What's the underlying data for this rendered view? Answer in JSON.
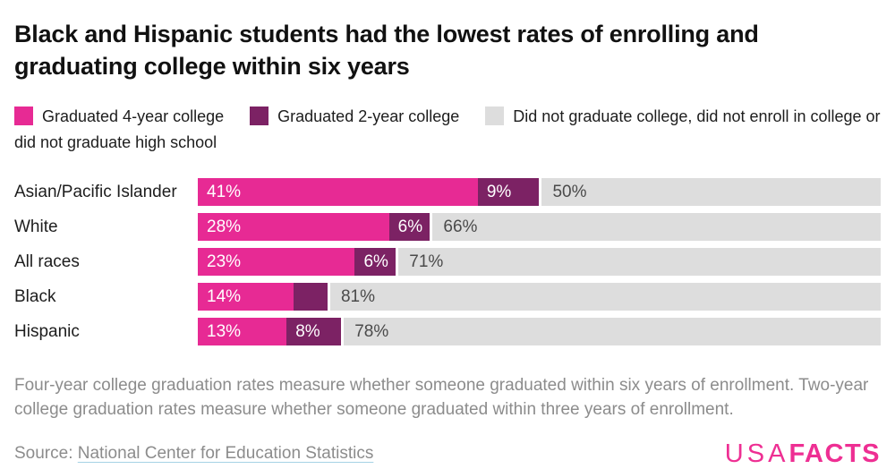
{
  "header": {
    "title": "Black and Hispanic students had the lowest rates of enrolling and graduating college within six years"
  },
  "colors": {
    "four_year": "#e72a94",
    "two_year": "#7c2264",
    "none": "#dddddd",
    "label_on_dark": "#ffffff",
    "label_on_gray": "#4a4a4a",
    "footnote_gray": "#8c8c8c",
    "link_underline": "#a5d2e5",
    "logo_pink": "#ee2f93"
  },
  "legend": {
    "items": [
      {
        "label": "Graduated 4-year college",
        "color": "#e72a94"
      },
      {
        "label": "Graduated 2-year college",
        "color": "#7c2264"
      },
      {
        "label": "Did not graduate college, did not enroll in college or did not graduate high school",
        "color": "#dddddd"
      }
    ]
  },
  "chart_data": {
    "type": "bar",
    "orientation": "horizontal",
    "stacked": true,
    "unit": "percent",
    "xlim": [
      0,
      100
    ],
    "grid": false,
    "legend_position": "top",
    "title": "Black and Hispanic students had the lowest rates of enrolling and graduating college within six years",
    "categories": [
      "Asian/Pacific Islander",
      "White",
      "All races",
      "Black",
      "Hispanic"
    ],
    "series": [
      {
        "name": "Graduated 4-year college",
        "color": "#e72a94",
        "values": [
          41,
          28,
          23,
          14,
          13
        ]
      },
      {
        "name": "Graduated 2-year college",
        "color": "#7c2264",
        "values": [
          9,
          6,
          6,
          5,
          8
        ]
      },
      {
        "name": "Did not graduate college, did not enroll in college or did not graduate high school",
        "color": "#dddddd",
        "values": [
          50,
          66,
          71,
          81,
          78
        ]
      }
    ],
    "rows": [
      {
        "label": "Asian/Pacific Islander",
        "four_year": 41,
        "four_year_label": "41%",
        "two_year": 9,
        "two_year_label": "9%",
        "none": 50,
        "none_label": "50%"
      },
      {
        "label": "White",
        "four_year": 28,
        "four_year_label": "28%",
        "two_year": 6,
        "two_year_label": "6%",
        "none": 66,
        "none_label": "66%"
      },
      {
        "label": "All races",
        "four_year": 23,
        "four_year_label": "23%",
        "two_year": 6,
        "two_year_label": "6%",
        "none": 71,
        "none_label": "71%"
      },
      {
        "label": "Black",
        "four_year": 14,
        "four_year_label": "14%",
        "two_year": 5,
        "two_year_label": "",
        "none": 81,
        "none_label": "81%"
      },
      {
        "label": "Hispanic",
        "four_year": 13,
        "four_year_label": "13%",
        "two_year": 8,
        "two_year_label": "8%",
        "none": 78,
        "none_label": "78%"
      }
    ]
  },
  "footnote": {
    "text": "Four-year college graduation rates measure whether someone graduated within six years of enrollment. Two-year college graduation rates measure whether someone graduated within three years of enrollment."
  },
  "source": {
    "prefix": "Source: ",
    "link_text": "National Center for Education Statistics"
  },
  "logo": {
    "usa": "USA",
    "facts": "FACTS"
  }
}
